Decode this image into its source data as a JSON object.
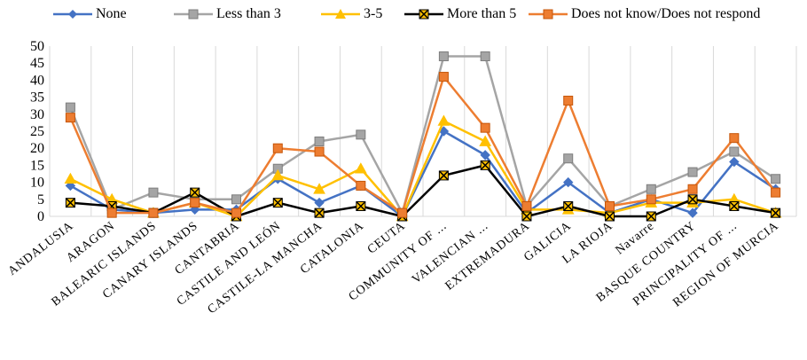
{
  "chart_data": {
    "type": "line",
    "title": "",
    "xlabel": "",
    "ylabel": "",
    "ylim": [
      0,
      50
    ],
    "y_ticks": [
      "0",
      "5",
      "10",
      "15",
      "20",
      "25",
      "30",
      "35",
      "40",
      "45",
      "50"
    ],
    "grid": "vertical category gridlines",
    "legend_position": "top",
    "categories": [
      "ANDALUSIA",
      "ARAGON",
      "BALEARIC ISLANDS",
      "CANARY ISLANDS",
      "CANTABRIA",
      "CASTILE AND LEÓN",
      "CASTILE-LA MANCHA",
      "CATALONIA",
      "CEUTA",
      "COMMUNITY OF ...",
      "VALENCIAN ...",
      "EXTREMADURA",
      "GALICIA",
      "LA RIOJA",
      "Navarre",
      "BASQUE COUNTRY",
      "PRINCIPALITY OF ...",
      "REGION OF MURCIA"
    ],
    "series": [
      {
        "name": "None",
        "color": "#4472C4",
        "marker": "diamond",
        "values": [
          9,
          2,
          1,
          2,
          2,
          11,
          4,
          9,
          0,
          25,
          18,
          1,
          10,
          1,
          5,
          1,
          16,
          8
        ]
      },
      {
        "name": "Less than 3",
        "color": "#A5A5A5",
        "marker": "square",
        "values": [
          32,
          2,
          7,
          5,
          5,
          14,
          22,
          24,
          1,
          47,
          47,
          3,
          17,
          3,
          8,
          13,
          19,
          11
        ]
      },
      {
        "name": "3-5",
        "color": "#FFC000",
        "marker": "triangle",
        "values": [
          11,
          5,
          1,
          4,
          0,
          12,
          8,
          14,
          0,
          28,
          22,
          2,
          2,
          1,
          4,
          4,
          5,
          1
        ]
      },
      {
        "name": "More than 5",
        "color": "#000000",
        "marker": "x-square",
        "values": [
          4,
          3,
          1,
          7,
          0,
          4,
          1,
          3,
          0,
          12,
          15,
          0,
          3,
          0,
          0,
          5,
          3,
          1
        ]
      },
      {
        "name": "Does not know/Does not respond",
        "color": "#ED7D31",
        "marker": "square",
        "values": [
          29,
          1,
          1,
          4,
          1,
          20,
          19,
          9,
          1,
          41,
          26,
          3,
          34,
          3,
          5,
          8,
          23,
          7
        ]
      }
    ]
  }
}
